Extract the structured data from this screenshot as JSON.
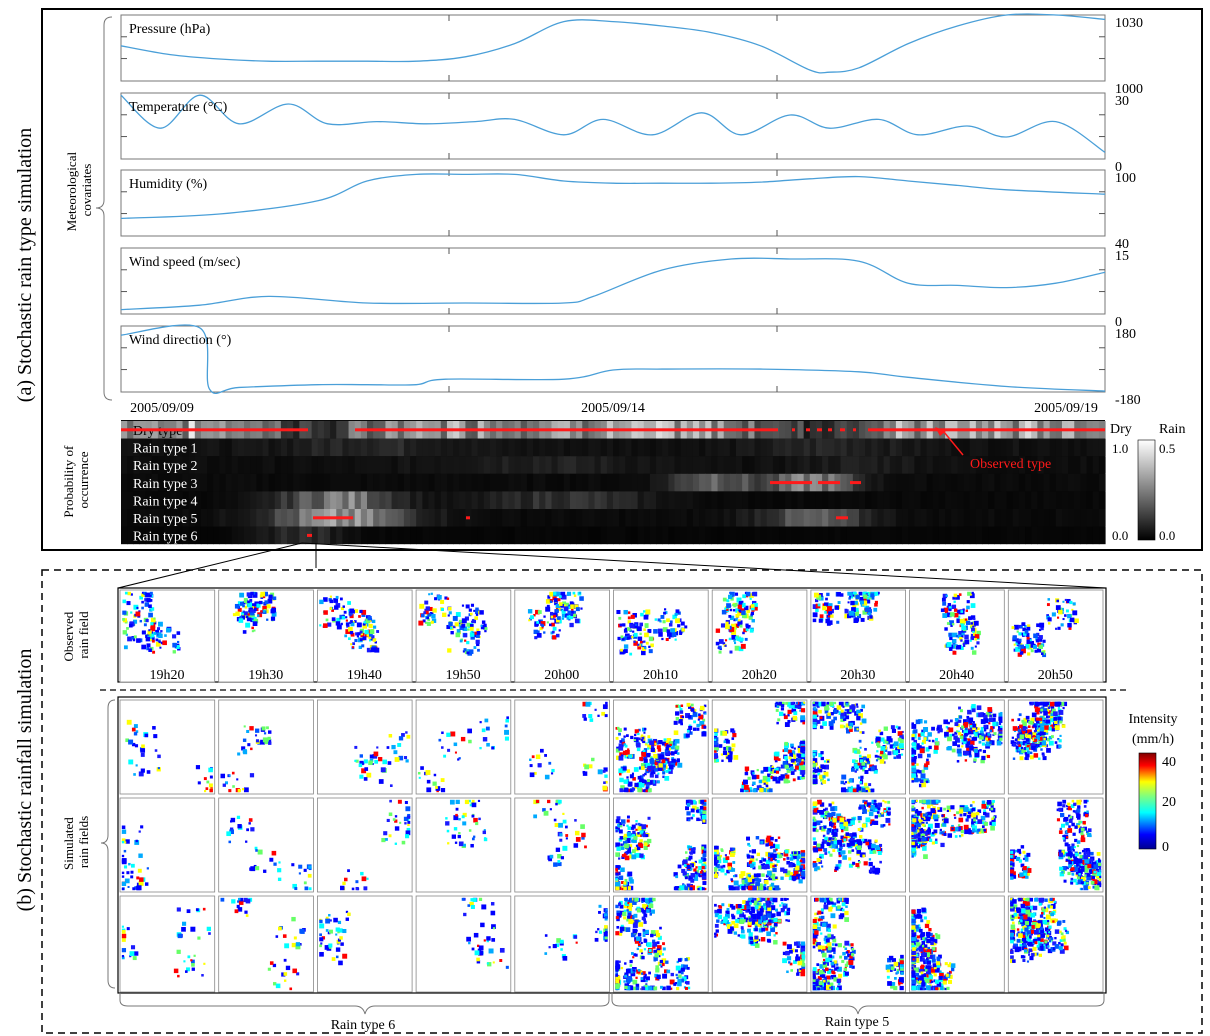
{
  "panel_a": {
    "section_label": "(a) Stochastic rain type simulation",
    "covariates_label": [
      "Meteorological",
      "covariates"
    ],
    "prob_label": [
      "Probability of",
      "occurrence"
    ],
    "dates": [
      "2005/09/09",
      "2005/09/14",
      "2005/09/19"
    ],
    "covariate_plots": [
      {
        "title": "Pressure (hPa)",
        "max": "1030",
        "min": "1000",
        "x": [
          0,
          0.05,
          0.1,
          0.15,
          0.2,
          0.25,
          0.3,
          0.35,
          0.4,
          0.45,
          0.5,
          0.55,
          0.6,
          0.65,
          0.7,
          0.72,
          0.75,
          0.8,
          0.85,
          0.9,
          0.95,
          1
        ],
        "y": [
          1016,
          1012,
          1010,
          1009,
          1009,
          1009,
          1009,
          1011,
          1017,
          1027,
          1027,
          1025,
          1022,
          1016,
          1005,
          1004,
          1006,
          1017,
          1025,
          1030,
          1030,
          1028
        ]
      },
      {
        "title": "Temperature (°C)",
        "max": "30",
        "min": "0",
        "x": [
          0,
          0.04,
          0.08,
          0.12,
          0.17,
          0.21,
          0.26,
          0.31,
          0.36,
          0.4,
          0.45,
          0.49,
          0.54,
          0.59,
          0.63,
          0.68,
          0.72,
          0.77,
          0.81,
          0.86,
          0.9,
          0.95,
          1
        ],
        "y": [
          29,
          14,
          29,
          16,
          25,
          16,
          17,
          16,
          17,
          18,
          11,
          18,
          11,
          21,
          11,
          20,
          14,
          18,
          11,
          15,
          10,
          17,
          3
        ]
      },
      {
        "title": "Humidity (%)",
        "max": "100",
        "min": "40",
        "x": [
          0,
          0.1,
          0.2,
          0.25,
          0.3,
          0.35,
          0.4,
          0.45,
          0.5,
          0.55,
          0.6,
          0.65,
          0.7,
          0.75,
          0.8,
          0.85,
          0.9,
          1
        ],
        "y": [
          56,
          60,
          72,
          90,
          96,
          96,
          96,
          90,
          88,
          88,
          88,
          89,
          92,
          94,
          90,
          86,
          82,
          78
        ]
      },
      {
        "title": "Wind speed (m/sec)",
        "max": "15",
        "min": "0",
        "x": [
          0,
          0.08,
          0.15,
          0.25,
          0.35,
          0.45,
          0.48,
          0.55,
          0.62,
          0.68,
          0.75,
          0.8,
          0.85,
          0.9,
          0.95,
          1
        ],
        "y": [
          1,
          2,
          4,
          2.5,
          2.5,
          2.5,
          4,
          10,
          12.5,
          12.5,
          12,
          7,
          6.5,
          6,
          7,
          9.5
        ]
      },
      {
        "title": "Wind direction (°)",
        "max": "180",
        "min": "-180",
        "x": [
          0,
          0.08,
          0.09,
          0.12,
          0.2,
          0.25,
          0.3,
          0.33,
          0.45,
          0.5,
          0.55,
          0.65,
          0.75,
          0.8,
          0.9,
          1
        ],
        "y": [
          130,
          170,
          -165,
          -155,
          -140,
          -140,
          -140,
          -110,
          -110,
          -60,
          -55,
          -55,
          -70,
          -100,
          -150,
          -175
        ]
      }
    ],
    "rain_types": [
      "Dry type",
      "Rain type 1",
      "Rain type 2",
      "Rain type 3",
      "Rain type 4",
      "Rain type 5",
      "Rain type 6"
    ],
    "observed_label": "Observed type",
    "colorbar_dry": {
      "label": "Dry",
      "max": "1.0",
      "min": "0.0"
    },
    "colorbar_rain": {
      "label": "Rain",
      "max": "0.5",
      "min": "0.0"
    }
  },
  "panel_b": {
    "section_label": "(b) Stochastic rainfall simulation",
    "observed_label": [
      "Observed",
      "rain field"
    ],
    "simulated_label": [
      "Simulated",
      "rain fields"
    ],
    "times": [
      "19h20",
      "19h30",
      "19h40",
      "19h50",
      "20h00",
      "20h10",
      "20h20",
      "20h30",
      "20h40",
      "20h50"
    ],
    "group_labels": [
      "Rain type 6",
      "Rain type 5"
    ],
    "intensity_title": [
      "Intensity",
      "(mm/h)"
    ],
    "intensity_ticks": [
      "40",
      "20",
      "0"
    ]
  },
  "colors": {
    "curve": "#4a9fd8",
    "observed": "#ff1a1a",
    "frame": "#000000"
  }
}
